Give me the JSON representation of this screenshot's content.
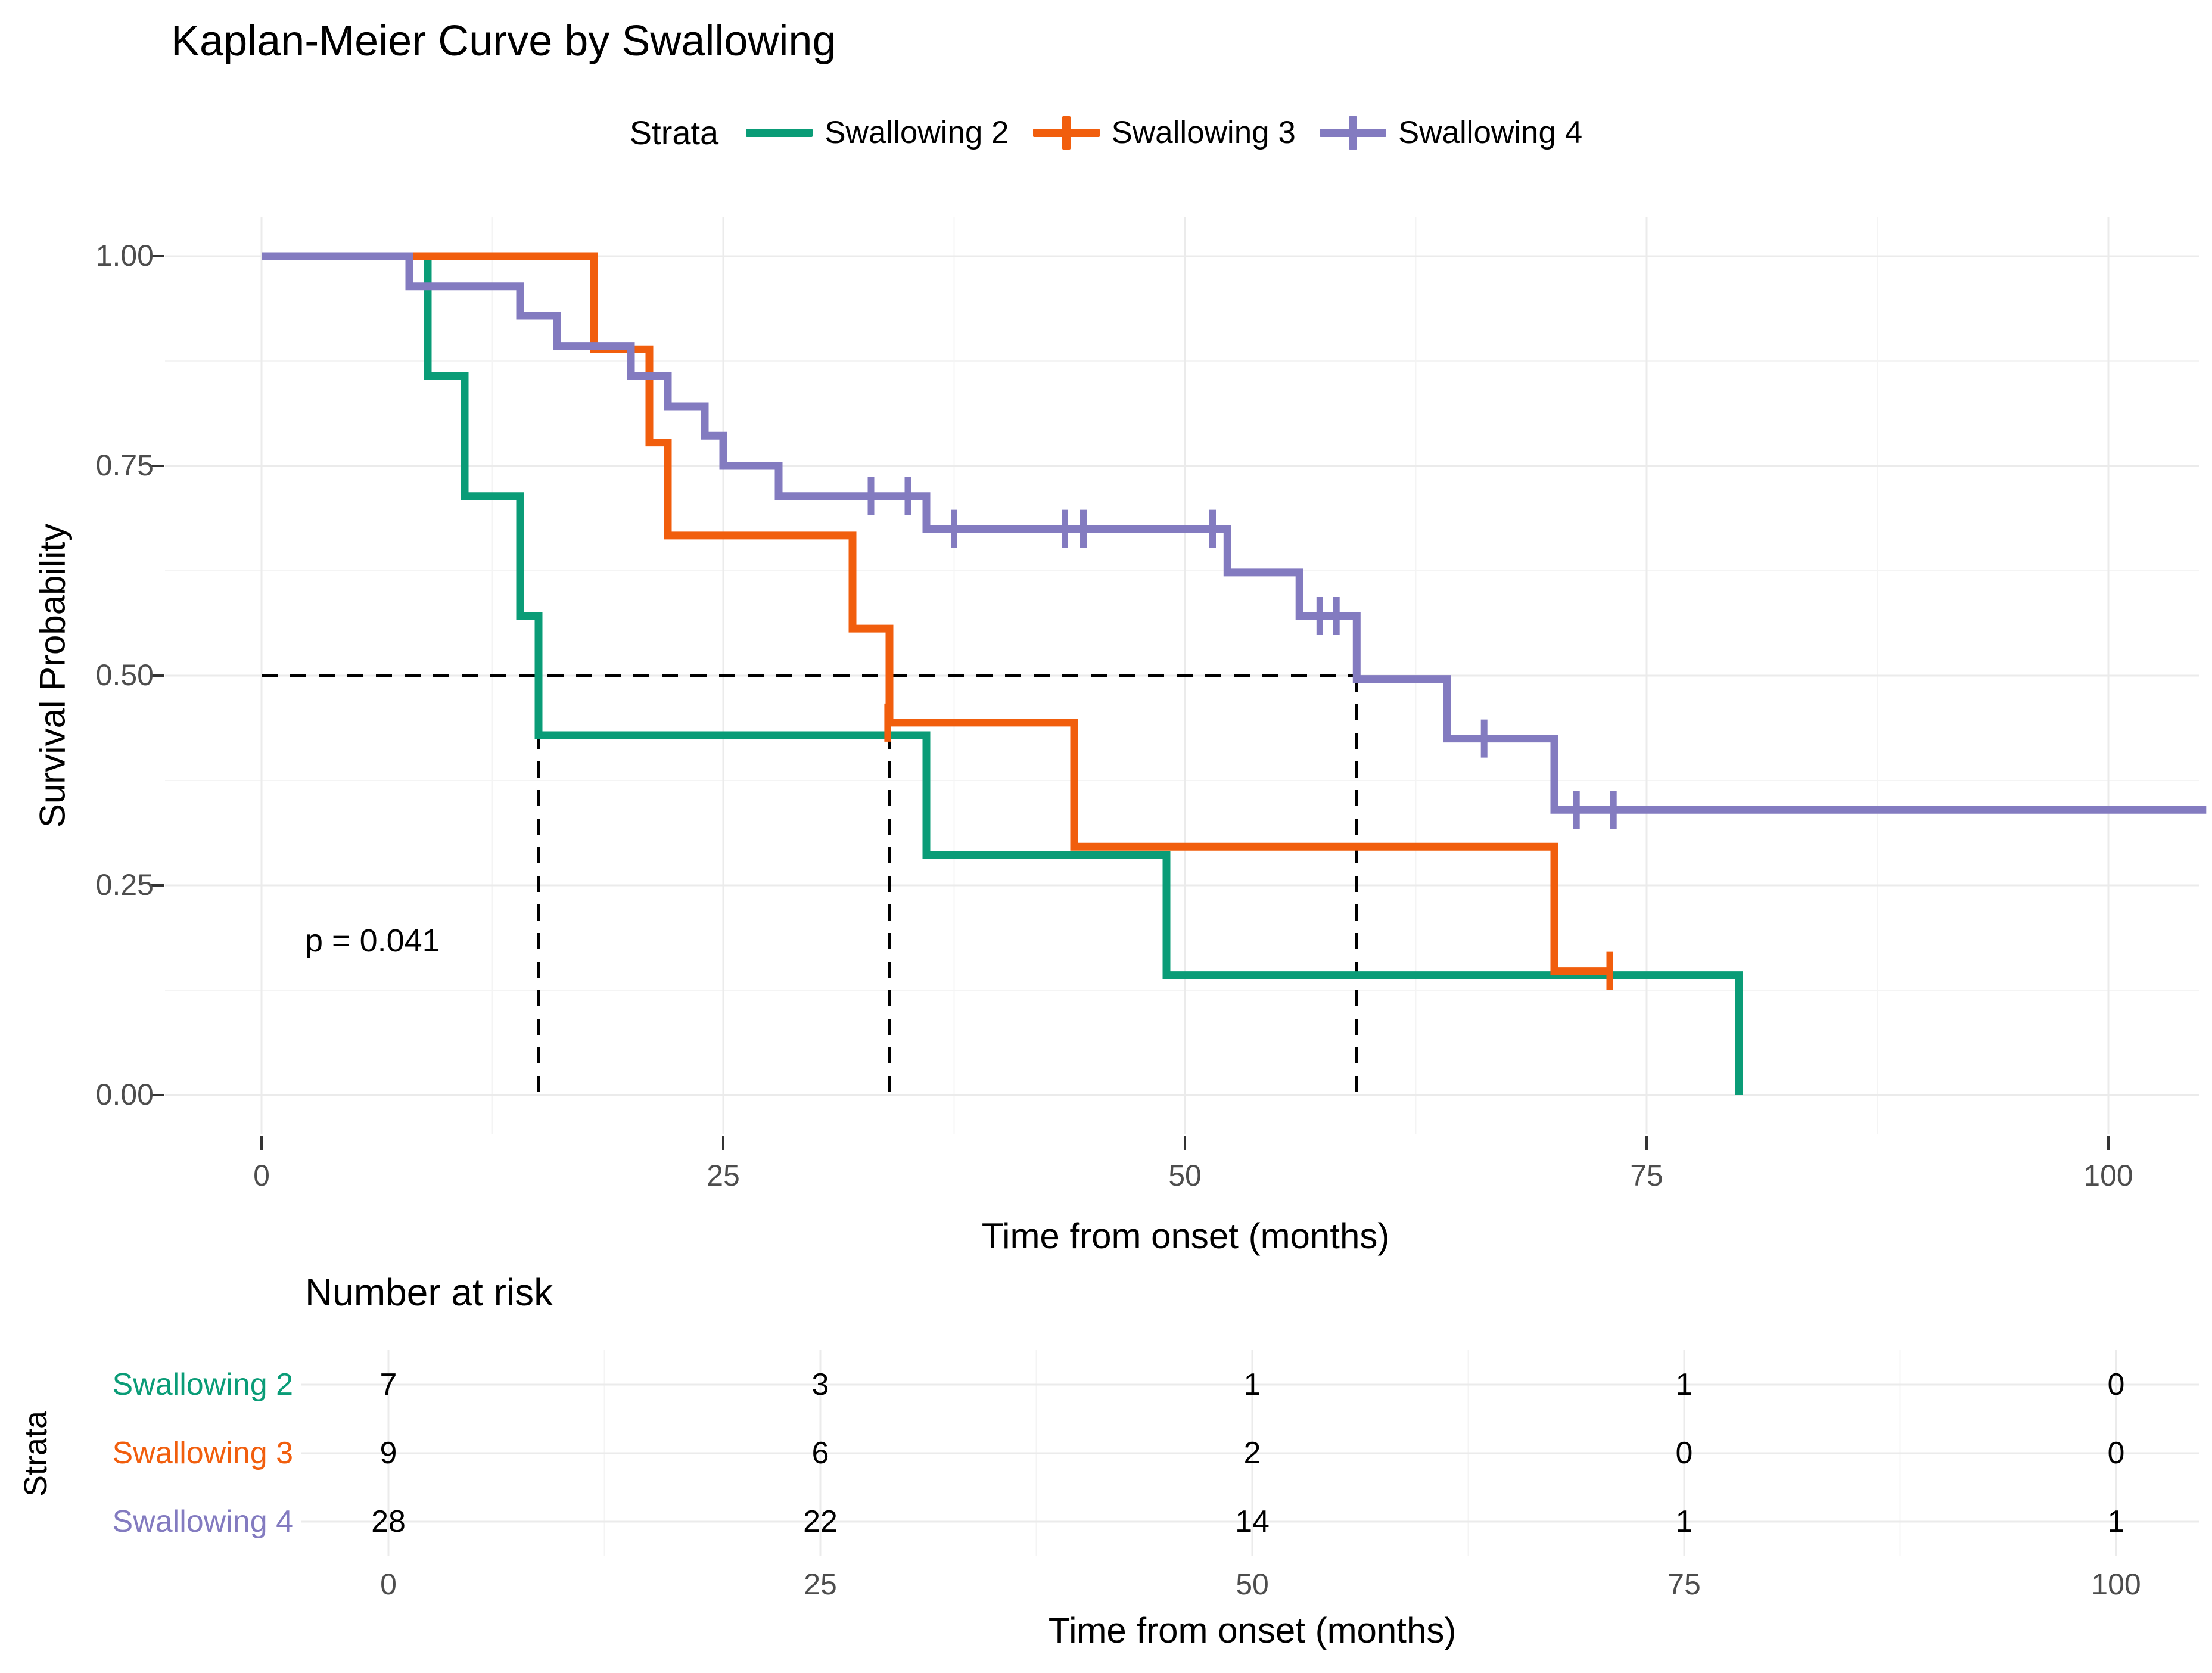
{
  "title": "Kaplan-Meier Curve by Swallowing",
  "legend": {
    "title": "Strata",
    "items": [
      {
        "label": "Swallowing 2",
        "color": "#0A9C77",
        "censor_in_key": false
      },
      {
        "label": "Swallowing 3",
        "color": "#F15E0D",
        "censor_in_key": true
      },
      {
        "label": "Swallowing 4",
        "color": "#837BC0",
        "censor_in_key": true
      }
    ]
  },
  "chart_data": {
    "type": "line",
    "subtype": "kaplan-meier-step",
    "title": "Kaplan-Meier Curve by Swallowing",
    "xlabel": "Time from onset (months)",
    "ylabel": "Survival Probability",
    "xlim": [
      0,
      105
    ],
    "ylim": [
      0,
      1
    ],
    "x_ticks": [
      0,
      25,
      50,
      75,
      100
    ],
    "y_ticks": [
      1.0,
      0.75,
      0.5,
      0.25,
      0.0
    ],
    "y_tick_labels": [
      "1.00",
      "0.75",
      "0.50",
      "0.25",
      "0.00"
    ],
    "grid": true,
    "legend_position": "top",
    "p_value_label": "p = 0.041",
    "median_survival_months": [
      15,
      34,
      59.3
    ],
    "median_probability": 0.5,
    "series": [
      {
        "name": "Swallowing 2",
        "color": "#0A9C77",
        "steps": [
          [
            0,
            1
          ],
          [
            9,
            0.857
          ],
          [
            11,
            0.714
          ],
          [
            14,
            0.571
          ],
          [
            15,
            0.429
          ],
          [
            36,
            0.286
          ],
          [
            49,
            0.143
          ],
          [
            80,
            0
          ]
        ],
        "end_time": 80,
        "censors": []
      },
      {
        "name": "Swallowing 3",
        "color": "#F15E0D",
        "steps": [
          [
            0,
            1
          ],
          [
            18,
            0.889
          ],
          [
            21,
            0.778
          ],
          [
            22,
            0.667
          ],
          [
            32,
            0.556
          ],
          [
            34,
            0.444
          ],
          [
            44,
            0.296
          ],
          [
            70,
            0.148
          ]
        ],
        "end_time": 73,
        "censors": [
          [
            33.9,
            0.444
          ],
          [
            73,
            0.148
          ]
        ]
      },
      {
        "name": "Swallowing 4",
        "color": "#837BC0",
        "steps": [
          [
            0,
            1
          ],
          [
            8,
            0.964
          ],
          [
            14,
            0.929
          ],
          [
            16,
            0.893
          ],
          [
            20,
            0.857
          ],
          [
            22,
            0.821
          ],
          [
            24,
            0.786
          ],
          [
            25,
            0.75
          ],
          [
            28,
            0.714
          ],
          [
            36,
            0.675
          ],
          [
            52.3,
            0.623
          ],
          [
            56.2,
            0.571
          ],
          [
            59.3,
            0.496
          ],
          [
            64.2,
            0.425
          ],
          [
            70,
            0.34
          ]
        ],
        "end_time": 105.3,
        "censors": [
          [
            33,
            0.714
          ],
          [
            35,
            0.714
          ],
          [
            37.5,
            0.675
          ],
          [
            43.5,
            0.675
          ],
          [
            44.5,
            0.675
          ],
          [
            51.5,
            0.675
          ],
          [
            57.3,
            0.571
          ],
          [
            58.2,
            0.571
          ],
          [
            66.2,
            0.425
          ],
          [
            71.2,
            0.34
          ],
          [
            73.2,
            0.34
          ]
        ]
      }
    ]
  },
  "risk_table": {
    "title": "Number at risk",
    "ylabel": "Strata",
    "xlabel": "Time from onset (months)",
    "x_ticks": [
      0,
      25,
      50,
      75,
      100
    ],
    "rows": [
      {
        "label": "Swallowing 2",
        "color": "#0A9C77",
        "values": [
          "7",
          "3",
          "1",
          "1",
          "0"
        ]
      },
      {
        "label": "Swallowing 3",
        "color": "#F15E0D",
        "values": [
          "9",
          "6",
          "2",
          "0",
          "0"
        ]
      },
      {
        "label": "Swallowing 4",
        "color": "#837BC0",
        "values": [
          "28",
          "22",
          "14",
          "1",
          "1"
        ]
      }
    ]
  },
  "colors": {
    "grid_major": "#EBEBEB",
    "grid_minor": "#F4F4F4",
    "tick_text": "#4D4D4D",
    "tick_mark": "#333333",
    "median_dash": "#000000"
  }
}
